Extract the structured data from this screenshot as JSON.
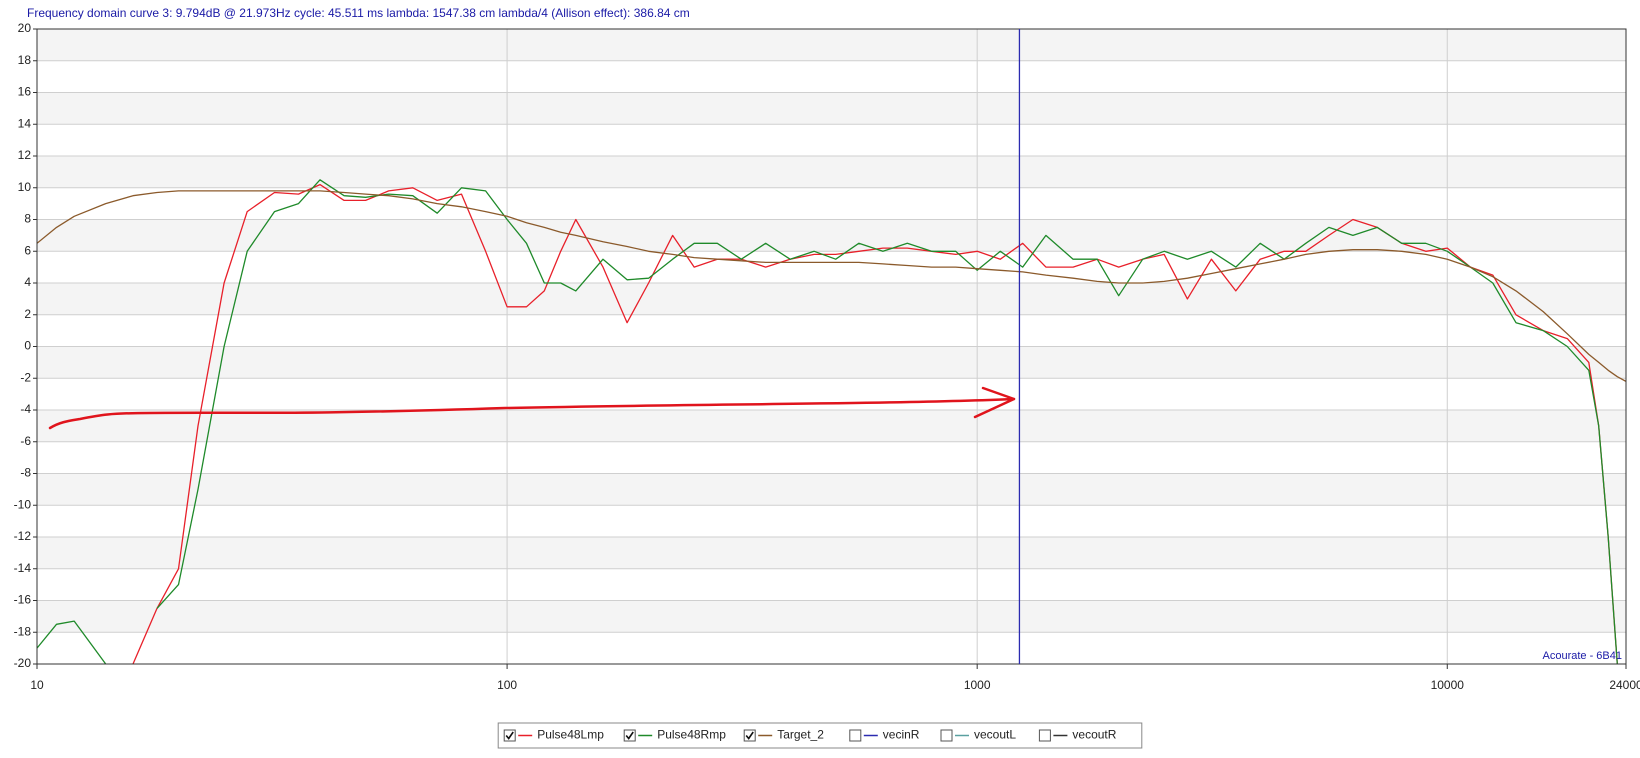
{
  "chart_data": {
    "type": "line",
    "title": "Frequency domain curve 3:  9.794dB @ 21.973Hz    cycle: 45.511 ms    lambda:  1547.38 cm   lambda/4 (Allison effect): 386.84 cm",
    "watermark": "Acourate - 6B41",
    "log_x": true,
    "grid": true,
    "cursor_x": 1230,
    "cursor_color": "#2b2bb0",
    "xlim": [
      10,
      24000
    ],
    "xticks": [
      10,
      100,
      1000,
      10000,
      24000
    ],
    "ylim": [
      -20,
      20
    ],
    "yticks": [
      -20,
      -18,
      -16,
      -14,
      -12,
      -10,
      -8,
      -6,
      -4,
      -2,
      0,
      2,
      4,
      6,
      8,
      10,
      12,
      14,
      16,
      18,
      20
    ],
    "x": [
      10,
      11,
      12,
      14,
      16,
      18,
      20,
      22,
      25,
      28,
      32,
      36,
      40,
      45,
      50,
      56,
      63,
      71,
      80,
      90,
      100,
      110,
      120,
      130,
      140,
      160,
      180,
      200,
      225,
      250,
      280,
      315,
      355,
      400,
      450,
      500,
      560,
      630,
      710,
      800,
      900,
      1000,
      1120,
      1250,
      1400,
      1600,
      1800,
      2000,
      2250,
      2500,
      2800,
      3150,
      3550,
      4000,
      4500,
      5000,
      5600,
      6300,
      7100,
      8000,
      9000,
      10000,
      11200,
      12500,
      14000,
      16000,
      18000,
      20000,
      21000,
      22000,
      23000,
      24000
    ],
    "series": [
      {
        "name": "Pulse48Lmp",
        "color": "#e8202a",
        "checked": true,
        "values": [
          null,
          null,
          null,
          null,
          -20,
          -16.5,
          -14,
          -5,
          4,
          8.5,
          9.7,
          9.6,
          10.2,
          9.2,
          9.2,
          9.8,
          10,
          9.2,
          9.6,
          6,
          2.5,
          2.5,
          3.5,
          6,
          8,
          5,
          1.5,
          4,
          7,
          5,
          5.5,
          5.5,
          5,
          5.5,
          5.8,
          5.8,
          6,
          6.2,
          6.2,
          6,
          5.8,
          6,
          5.5,
          6.5,
          5,
          5,
          5.5,
          5,
          5.5,
          5.8,
          3,
          5.5,
          3.5,
          5.5,
          6,
          6,
          7,
          8,
          7.5,
          6.5,
          6,
          6.2,
          5,
          4.5,
          2,
          1,
          0.5,
          -1,
          -5,
          -12,
          -20,
          null
        ]
      },
      {
        "name": "Pulse48Rmp",
        "color": "#1f8a2a",
        "checked": true,
        "values": [
          -19,
          -17.5,
          -17.3,
          -20,
          null,
          -16.5,
          -15,
          -9,
          0,
          6,
          8.5,
          9,
          10.5,
          9.5,
          9.4,
          9.6,
          9.5,
          8.4,
          10,
          9.8,
          8,
          6.5,
          4,
          4,
          3.5,
          5.5,
          4.2,
          4.3,
          5.5,
          6.5,
          6.5,
          5.5,
          6.5,
          5.5,
          6,
          5.5,
          6.5,
          6,
          6.5,
          6,
          6,
          4.8,
          6,
          5,
          7,
          5.5,
          5.5,
          3.2,
          5.5,
          6,
          5.5,
          6,
          5,
          6.5,
          5.5,
          6.5,
          7.5,
          7,
          7.5,
          6.5,
          6.5,
          6,
          5,
          4,
          1.5,
          1,
          0,
          -1.5,
          -5,
          -12,
          -20,
          null
        ]
      },
      {
        "name": "Target_2",
        "color": "#8b5a2b",
        "checked": true,
        "values": [
          6.5,
          7.5,
          8.2,
          9,
          9.5,
          9.7,
          9.8,
          9.8,
          9.8,
          9.8,
          9.8,
          9.8,
          9.8,
          9.7,
          9.6,
          9.5,
          9.3,
          9,
          8.8,
          8.5,
          8.2,
          7.8,
          7.5,
          7.2,
          7,
          6.6,
          6.3,
          6,
          5.8,
          5.6,
          5.5,
          5.4,
          5.3,
          5.3,
          5.3,
          5.3,
          5.3,
          5.2,
          5.1,
          5,
          5,
          4.9,
          4.8,
          4.7,
          4.5,
          4.3,
          4.1,
          4,
          4,
          4.1,
          4.3,
          4.6,
          4.9,
          5.2,
          5.5,
          5.8,
          6,
          6.1,
          6.1,
          6,
          5.8,
          5.5,
          5,
          4.4,
          3.5,
          2.2,
          0.8,
          -0.5,
          -1,
          -1.5,
          -1.9,
          -2.2
        ]
      },
      {
        "name": "vecinR",
        "color": "#2b2bb0",
        "checked": false
      },
      {
        "name": "vecoutL",
        "color": "#5aa0a0",
        "checked": false
      },
      {
        "name": "vecoutR",
        "color": "#333333",
        "checked": false
      }
    ]
  }
}
